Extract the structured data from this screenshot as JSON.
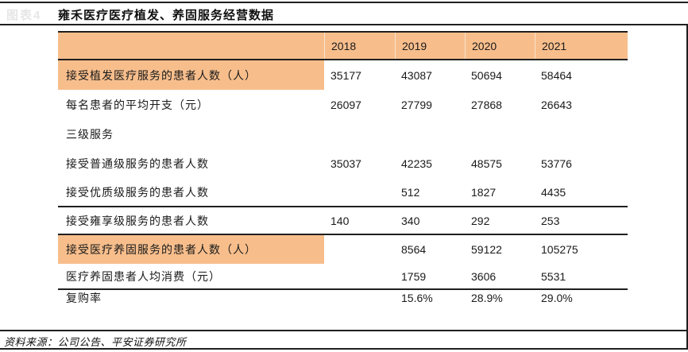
{
  "figure": {
    "faint_label": "图表4",
    "title": "雍禾医疗医疗植发、养固服务经营数据",
    "source": "资料来源：公司公告、平安证券研究所"
  },
  "colors": {
    "header_bg": "#F7BE8C",
    "highlight_bg": "#F7BE8C",
    "rule": "#1F1F1F",
    "text": "#1A1A1A",
    "faint_label_text": "#E6E6E6"
  },
  "chart_data": {
    "type": "table",
    "columns": [
      "",
      "2018",
      "2019",
      "2020",
      "2021"
    ],
    "rows": [
      {
        "label": "接受植发医疗服务的患者人数（人）",
        "values": [
          "35177",
          "43087",
          "50694",
          "58464"
        ],
        "highlight": true
      },
      {
        "label": "每名患者的平均开支（元）",
        "values": [
          "26097",
          "27799",
          "27868",
          "26643"
        ],
        "highlight": false
      },
      {
        "label": "三级服务",
        "values": [
          "",
          "",
          "",
          ""
        ],
        "highlight": false
      },
      {
        "label": "接受普通级服务的患者人数",
        "values": [
          "35037",
          "42235",
          "48575",
          "53776"
        ],
        "highlight": false
      },
      {
        "label": "接受优质级服务的患者人数",
        "values": [
          "",
          "512",
          "1827",
          "4435"
        ],
        "highlight": false
      },
      {
        "label": "接受雍享级服务的患者人数",
        "values": [
          "140",
          "340",
          "292",
          "253"
        ],
        "highlight": false
      },
      {
        "label": "接受医疗养固服务的患者人数（人）",
        "values": [
          "",
          "8564",
          "59122",
          "105275"
        ],
        "highlight": true
      },
      {
        "label": "医疗养固患者人均消费（元）",
        "values": [
          "",
          "1759",
          "3606",
          "5531"
        ],
        "highlight": false
      },
      {
        "label": "复购率",
        "values": [
          "",
          "15.6%",
          "28.9%",
          "29.0%"
        ],
        "highlight": false
      }
    ]
  }
}
